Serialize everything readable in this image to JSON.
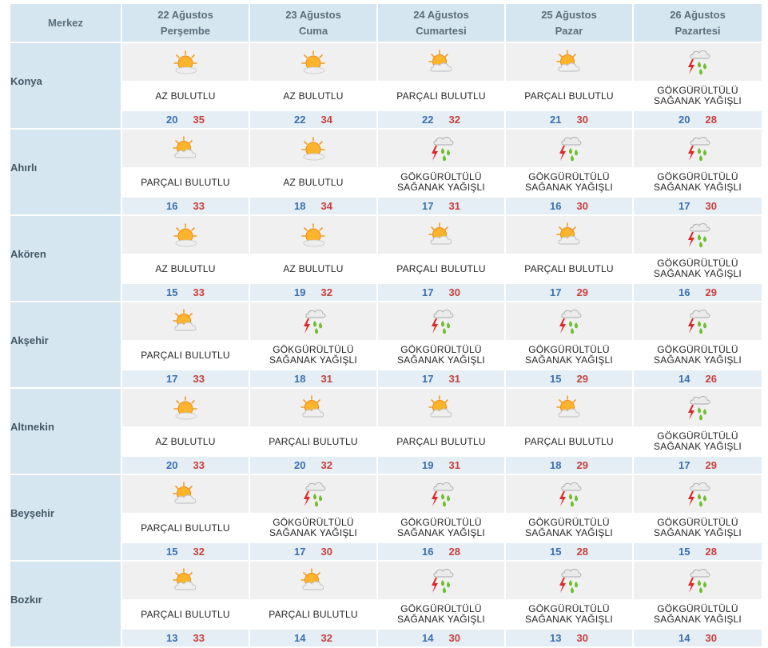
{
  "header": {
    "city_column": "Merkez",
    "days": [
      {
        "date": "22 Ağustos",
        "weekday": "Perşembe"
      },
      {
        "date": "23 Ağustos",
        "weekday": "Cuma"
      },
      {
        "date": "24 Ağustos",
        "weekday": "Cumartesi"
      },
      {
        "date": "25 Ağustos",
        "weekday": "Pazar"
      },
      {
        "date": "26 Ağustos",
        "weekday": "Pazartesi"
      }
    ]
  },
  "colors": {
    "header_bg": "#d5e6f0",
    "min_temp": "#3a6fb0",
    "max_temp": "#c9403d"
  },
  "rows": [
    {
      "city": "Konya",
      "days": [
        {
          "icon": "sun-icon",
          "cond": [
            "AZ BULUTLU"
          ],
          "min": "20",
          "max": "35"
        },
        {
          "icon": "sun-icon",
          "cond": [
            "AZ BULUTLU"
          ],
          "min": "22",
          "max": "34"
        },
        {
          "icon": "partly-cloudy-icon",
          "cond": [
            "PARÇALI BULUTLU"
          ],
          "min": "22",
          "max": "32"
        },
        {
          "icon": "partly-cloudy-icon",
          "cond": [
            "PARÇALI BULUTLU"
          ],
          "min": "21",
          "max": "30"
        },
        {
          "icon": "thunderstorm-icon",
          "cond": [
            "GÖKGÜRÜLTÜLÜ",
            "SAĞANAK YAĞIŞLI"
          ],
          "min": "20",
          "max": "28"
        }
      ]
    },
    {
      "city": "Ahırlı",
      "days": [
        {
          "icon": "partly-cloudy-icon",
          "cond": [
            "PARÇALI BULUTLU"
          ],
          "min": "16",
          "max": "33"
        },
        {
          "icon": "sun-icon",
          "cond": [
            "AZ BULUTLU"
          ],
          "min": "18",
          "max": "34"
        },
        {
          "icon": "thunderstorm-icon",
          "cond": [
            "GÖKGÜRÜLTÜLÜ",
            "SAĞANAK YAĞIŞLI"
          ],
          "min": "17",
          "max": "31"
        },
        {
          "icon": "thunderstorm-icon",
          "cond": [
            "GÖKGÜRÜLTÜLÜ",
            "SAĞANAK YAĞIŞLI"
          ],
          "min": "16",
          "max": "30"
        },
        {
          "icon": "thunderstorm-icon",
          "cond": [
            "GÖKGÜRÜLTÜLÜ",
            "SAĞANAK YAĞIŞLI"
          ],
          "min": "17",
          "max": "30"
        }
      ]
    },
    {
      "city": "Akören",
      "days": [
        {
          "icon": "sun-icon",
          "cond": [
            "AZ BULUTLU"
          ],
          "min": "15",
          "max": "33"
        },
        {
          "icon": "sun-icon",
          "cond": [
            "AZ BULUTLU"
          ],
          "min": "19",
          "max": "32"
        },
        {
          "icon": "partly-cloudy-icon",
          "cond": [
            "PARÇALI BULUTLU"
          ],
          "min": "17",
          "max": "30"
        },
        {
          "icon": "partly-cloudy-icon",
          "cond": [
            "PARÇALI BULUTLU"
          ],
          "min": "17",
          "max": "29"
        },
        {
          "icon": "thunderstorm-icon",
          "cond": [
            "GÖKGÜRÜLTÜLÜ",
            "SAĞANAK YAĞIŞLI"
          ],
          "min": "16",
          "max": "29"
        }
      ]
    },
    {
      "city": "Akşehir",
      "days": [
        {
          "icon": "partly-cloudy-icon",
          "cond": [
            "PARÇALI BULUTLU"
          ],
          "min": "17",
          "max": "33"
        },
        {
          "icon": "thunderstorm-icon",
          "cond": [
            "GÖKGÜRÜLTÜLÜ",
            "SAĞANAK YAĞIŞLI"
          ],
          "min": "18",
          "max": "31"
        },
        {
          "icon": "thunderstorm-icon",
          "cond": [
            "GÖKGÜRÜLTÜLÜ",
            "SAĞANAK YAĞIŞLI"
          ],
          "min": "17",
          "max": "31"
        },
        {
          "icon": "thunderstorm-icon",
          "cond": [
            "GÖKGÜRÜLTÜLÜ",
            "SAĞANAK YAĞIŞLI"
          ],
          "min": "15",
          "max": "29"
        },
        {
          "icon": "thunderstorm-icon",
          "cond": [
            "GÖKGÜRÜLTÜLÜ",
            "SAĞANAK YAĞIŞLI"
          ],
          "min": "14",
          "max": "26"
        }
      ]
    },
    {
      "city": "Altınekin",
      "days": [
        {
          "icon": "sun-icon",
          "cond": [
            "AZ BULUTLU"
          ],
          "min": "20",
          "max": "33"
        },
        {
          "icon": "partly-cloudy-icon",
          "cond": [
            "PARÇALI BULUTLU"
          ],
          "min": "20",
          "max": "32"
        },
        {
          "icon": "partly-cloudy-icon",
          "cond": [
            "PARÇALI BULUTLU"
          ],
          "min": "19",
          "max": "31"
        },
        {
          "icon": "partly-cloudy-icon",
          "cond": [
            "PARÇALI BULUTLU"
          ],
          "min": "18",
          "max": "29"
        },
        {
          "icon": "thunderstorm-icon",
          "cond": [
            "GÖKGÜRÜLTÜLÜ",
            "SAĞANAK YAĞIŞLI"
          ],
          "min": "17",
          "max": "29"
        }
      ]
    },
    {
      "city": "Beyşehir",
      "days": [
        {
          "icon": "partly-cloudy-icon",
          "cond": [
            "PARÇALI BULUTLU"
          ],
          "min": "15",
          "max": "32"
        },
        {
          "icon": "thunderstorm-icon",
          "cond": [
            "GÖKGÜRÜLTÜLÜ",
            "SAĞANAK YAĞIŞLI"
          ],
          "min": "17",
          "max": "30"
        },
        {
          "icon": "thunderstorm-icon",
          "cond": [
            "GÖKGÜRÜLTÜLÜ",
            "SAĞANAK YAĞIŞLI"
          ],
          "min": "16",
          "max": "28"
        },
        {
          "icon": "thunderstorm-icon",
          "cond": [
            "GÖKGÜRÜLTÜLÜ",
            "SAĞANAK YAĞIŞLI"
          ],
          "min": "15",
          "max": "28"
        },
        {
          "icon": "thunderstorm-icon",
          "cond": [
            "GÖKGÜRÜLTÜLÜ",
            "SAĞANAK YAĞIŞLI"
          ],
          "min": "15",
          "max": "28"
        }
      ]
    },
    {
      "city": "Bozkır",
      "days": [
        {
          "icon": "partly-cloudy-icon",
          "cond": [
            "PARÇALI BULUTLU"
          ],
          "min": "13",
          "max": "33"
        },
        {
          "icon": "partly-cloudy-icon",
          "cond": [
            "PARÇALI BULUTLU"
          ],
          "min": "14",
          "max": "32"
        },
        {
          "icon": "thunderstorm-icon",
          "cond": [
            "GÖKGÜRÜLTÜLÜ",
            "SAĞANAK YAĞIŞLI"
          ],
          "min": "14",
          "max": "30"
        },
        {
          "icon": "thunderstorm-icon",
          "cond": [
            "GÖKGÜRÜLTÜLÜ",
            "SAĞANAK YAĞIŞLI"
          ],
          "min": "13",
          "max": "30"
        },
        {
          "icon": "thunderstorm-icon",
          "cond": [
            "GÖKGÜRÜLTÜLÜ",
            "SAĞANAK YAĞIŞLI"
          ],
          "min": "14",
          "max": "30"
        }
      ]
    }
  ]
}
